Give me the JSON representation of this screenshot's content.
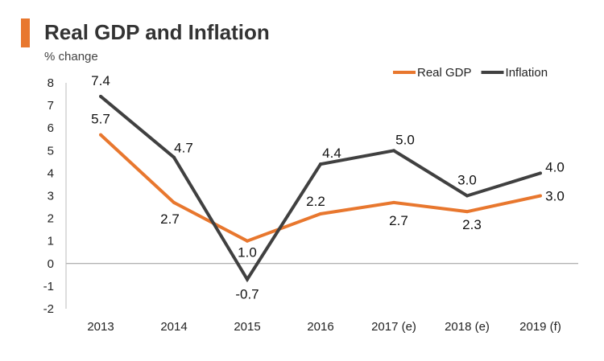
{
  "chart_data": {
    "type": "line",
    "title": "Real GDP and Inflation",
    "ylabel": "% change",
    "xlabel": "",
    "categories": [
      "2013",
      "2014",
      "2015",
      "2016",
      "2017 (e)",
      "2018 (e)",
      "2019 (f)"
    ],
    "ylim": [
      -2,
      8
    ],
    "yticks": [
      -2,
      -1,
      0,
      1,
      2,
      3,
      4,
      5,
      6,
      7,
      8
    ],
    "legend_position": "top-right",
    "series": [
      {
        "name": "Real GDP",
        "color": "#e8772e",
        "values": [
          5.7,
          2.7,
          1.0,
          2.2,
          2.7,
          2.3,
          3.0
        ],
        "labels": [
          "5.7",
          "2.7",
          "1.0",
          "2.2",
          "2.7",
          "2.3",
          "3.0"
        ]
      },
      {
        "name": "Inflation",
        "color": "#404040",
        "values": [
          7.4,
          4.7,
          -0.7,
          4.4,
          5.0,
          3.0,
          4.0
        ],
        "labels": [
          "7.4",
          "4.7",
          "-0.7",
          "4.4",
          "5.0",
          "3.0",
          "4.0"
        ]
      }
    ]
  }
}
